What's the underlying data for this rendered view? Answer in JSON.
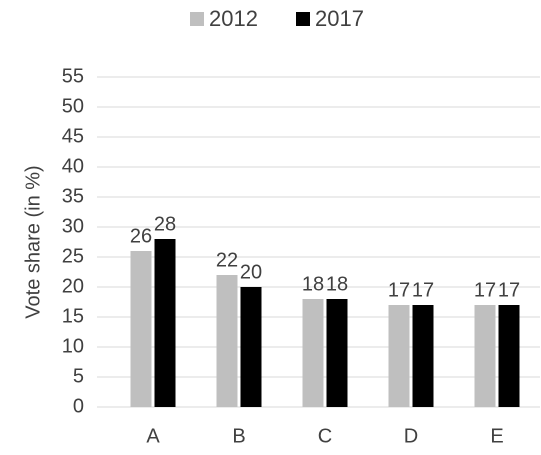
{
  "chart_data": {
    "type": "bar",
    "categories": [
      "A",
      "B",
      "C",
      "D",
      "E"
    ],
    "series": [
      {
        "name": "2012",
        "color": "#bfbfbf",
        "values": [
          26,
          22,
          18,
          17,
          17
        ]
      },
      {
        "name": "2017",
        "color": "#000000",
        "values": [
          28,
          20,
          18,
          17,
          17
        ]
      }
    ],
    "y_label": "Vote share (in %)",
    "ylim": [
      0,
      55
    ],
    "yticks": [
      0,
      5,
      10,
      15,
      20,
      25,
      30,
      35,
      40,
      45,
      50,
      55
    ],
    "grid": true,
    "legend": "top",
    "data_labels": true
  }
}
